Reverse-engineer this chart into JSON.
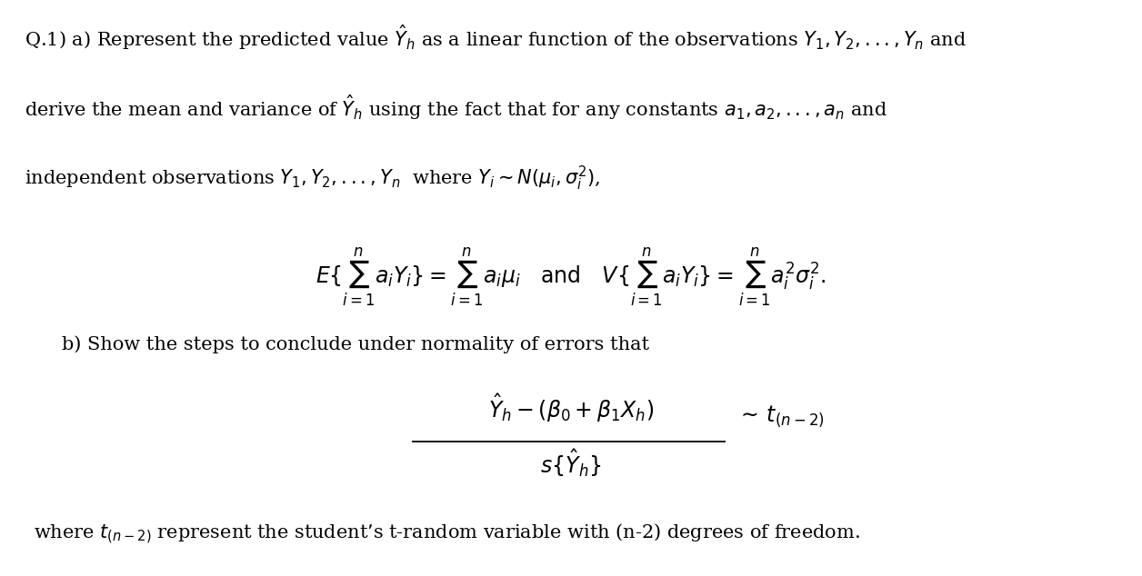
{
  "background_color": "#ffffff",
  "figsize": [
    12.56,
    6.34
  ],
  "dpi": 100,
  "line1": "Q.1) a) Represent the predicted value $\\hat{Y}_h$ as a linear function of the observations $Y_1, Y_2, ..., Y_n$ and",
  "line2": "derive the mean and variance of $\\hat{Y}_h$ using the fact that for any constants $a_1, a_2, ..., a_n$ and",
  "line3": "independent observations $Y_1, Y_2, ..., Y_n$  where $Y_i \\sim N(\\mu_i, \\sigma_i^{2})$,",
  "formula1": "$E\\{\\sum_{i=1}^{n} a_i Y_i\\} = \\sum_{i=1}^{n} a_i \\mu_i \\quad \\mathrm{and} \\quad V\\{\\sum_{i=1}^{n} a_i Y_i\\} = \\sum_{i=1}^{n} a_i^2 \\sigma_i^2.$",
  "line4": "b) Show the steps to conclude under normality of errors that",
  "formula2_num": "$\\hat{Y}_h - (\\beta_0 + \\beta_1 X_h)$",
  "formula2_den": "$s\\{\\hat{Y}_h\\}$",
  "formula2_right": "$\\sim\\, t_{(n-2)}$",
  "line5": "where $t_{(n-2)}$ represent the student’s t-random variable with (n-2) degrees of freedom.",
  "text_color": "#000000",
  "font_size_main": 15,
  "font_size_formula": 17
}
